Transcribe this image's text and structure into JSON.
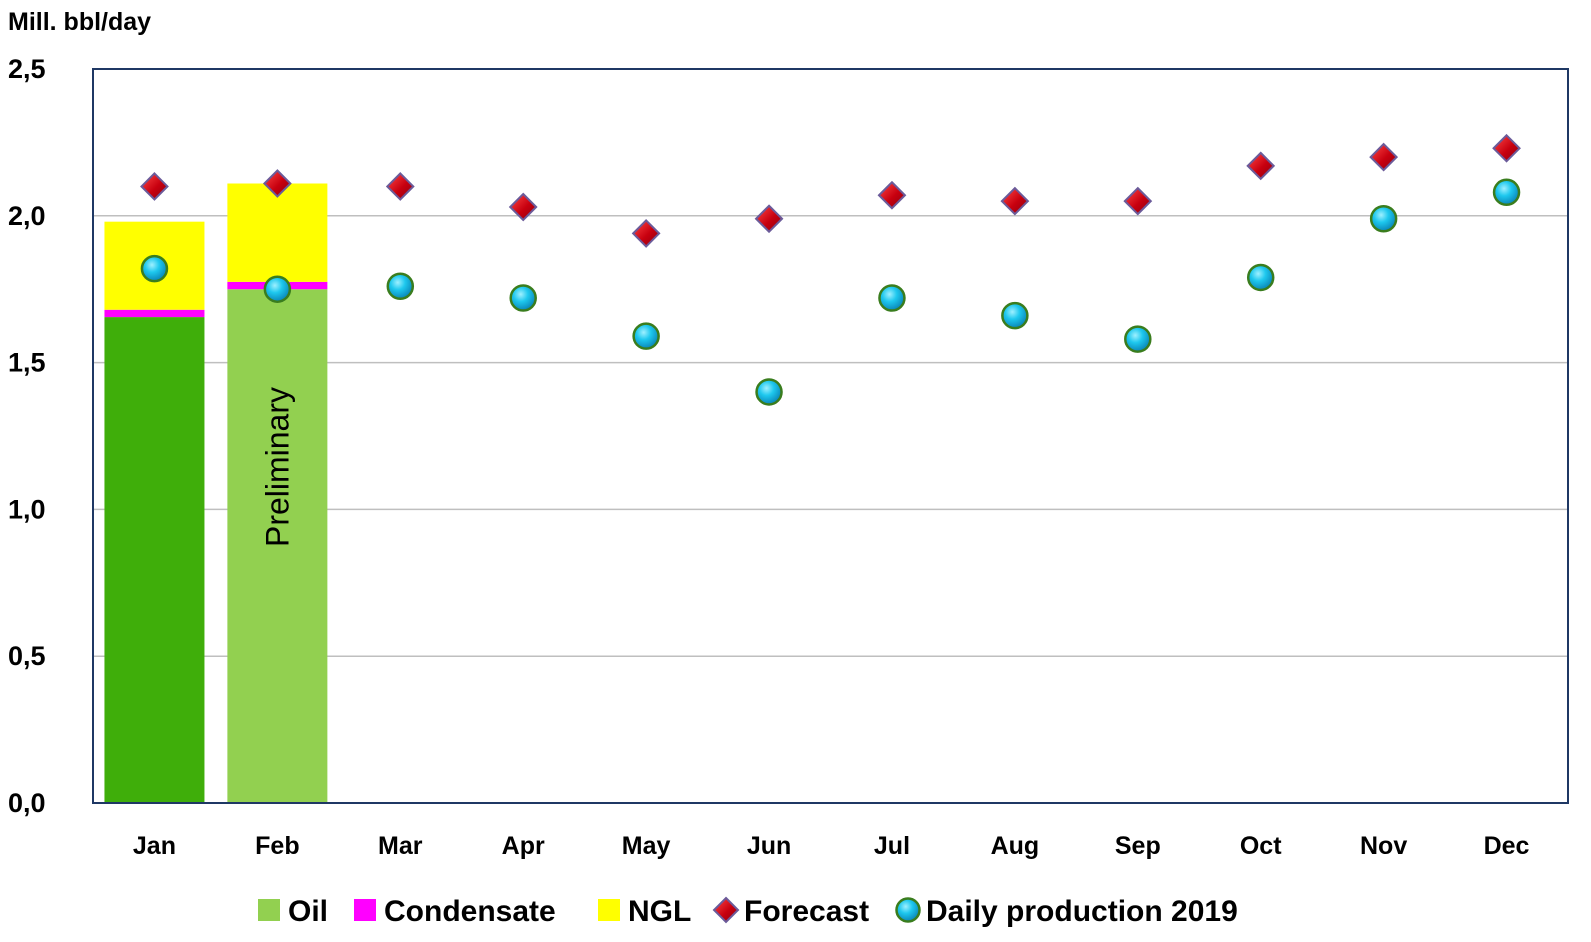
{
  "chart_data": {
    "type": "bar",
    "ylabel": "Mill. bbl/day",
    "ylim": [
      0,
      2.5
    ],
    "yticks": [
      "0,0",
      "0,5",
      "1,0",
      "1,5",
      "2,0",
      "2,5"
    ],
    "ytick_values": [
      0,
      0.5,
      1.0,
      1.5,
      2.0,
      2.5
    ],
    "grid": true,
    "categories": [
      "Jan",
      "Feb",
      "Mar",
      "Apr",
      "May",
      "Jun",
      "Jul",
      "Aug",
      "Sep",
      "Oct",
      "Nov",
      "Dec"
    ],
    "series": [
      {
        "name": "Oil",
        "kind": "stacked-bar",
        "color": "#92d050",
        "colors_by_point": [
          "#3fae0a",
          "#92d050"
        ],
        "values": [
          1.655,
          1.75,
          null,
          null,
          null,
          null,
          null,
          null,
          null,
          null,
          null,
          null
        ]
      },
      {
        "name": "Condensate",
        "kind": "stacked-bar",
        "color": "#ff00ff",
        "values": [
          0.025,
          0.025,
          null,
          null,
          null,
          null,
          null,
          null,
          null,
          null,
          null,
          null
        ]
      },
      {
        "name": "NGL",
        "kind": "stacked-bar",
        "color": "#ffff00",
        "values": [
          0.3,
          0.335,
          null,
          null,
          null,
          null,
          null,
          null,
          null,
          null,
          null,
          null
        ]
      },
      {
        "name": "Forecast",
        "kind": "scatter-diamond",
        "color": "#c00000",
        "values": [
          2.1,
          2.11,
          2.1,
          2.03,
          1.94,
          1.99,
          2.07,
          2.05,
          2.05,
          2.17,
          2.2,
          2.23
        ]
      },
      {
        "name": "Daily production 2019",
        "kind": "scatter-circle",
        "color": "#00b0f0",
        "values": [
          1.82,
          1.75,
          1.76,
          1.72,
          1.59,
          1.4,
          1.72,
          1.66,
          1.58,
          1.79,
          1.99,
          2.08
        ]
      }
    ],
    "annotations": [
      {
        "text": "Preliminary",
        "category": "Feb"
      }
    ],
    "legend_position": "bottom"
  }
}
